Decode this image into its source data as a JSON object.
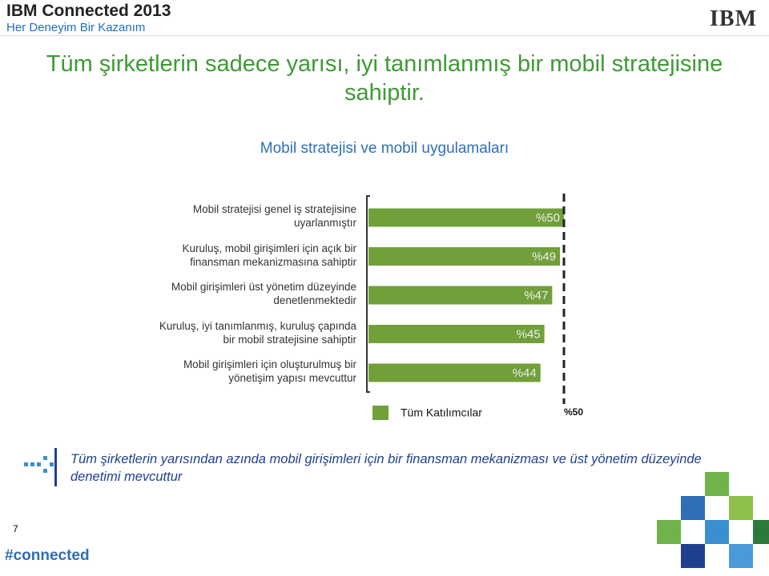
{
  "header": {
    "event": "IBM Connected 2013",
    "tagline": "Her Deneyim Bir Kazanım",
    "logo": "IBM"
  },
  "slide_title": "Tüm şirketlerin sadece yarısı, iyi tanımlanmış bir mobil stratejisine sahiptir.",
  "chart_data": {
    "type": "barh",
    "title": "Mobil stratejisi ve mobil uygulamaları",
    "categories": [
      "Mobil stratejisi genel iş stratejisine uyarlanmıştır",
      "Kuruluş, mobil girişimleri için açık bir finansman mekanizmasına sahiptir",
      "Mobil girişimleri üst yönetim düzeyinde denetlenmektedir",
      "Kuruluş, iyi tanımlanmış, kuruluş çapında bir mobil stratejisine sahiptir",
      "Mobil girişimleri için oluşturulmuş bir yönetişim yapısı mevcuttur"
    ],
    "series": [
      {
        "name": "Tüm Katılımcılar",
        "color": "#71a03b",
        "values": [
          50,
          49,
          47,
          45,
          44
        ],
        "value_labels": [
          "%50",
          "%49",
          "%47",
          "%45",
          "%44"
        ]
      }
    ],
    "xlim": [
      0,
      50
    ],
    "reference_line": {
      "value": 50,
      "label": "%50"
    }
  },
  "footnote": "Tüm şirketlerin yarısından azında mobil girişimleri için bir finansman mekanizması ve üst yönetim düzeyinde denetimi mevcuttur",
  "footer": {
    "page": "7",
    "hashtag": "#connected"
  }
}
